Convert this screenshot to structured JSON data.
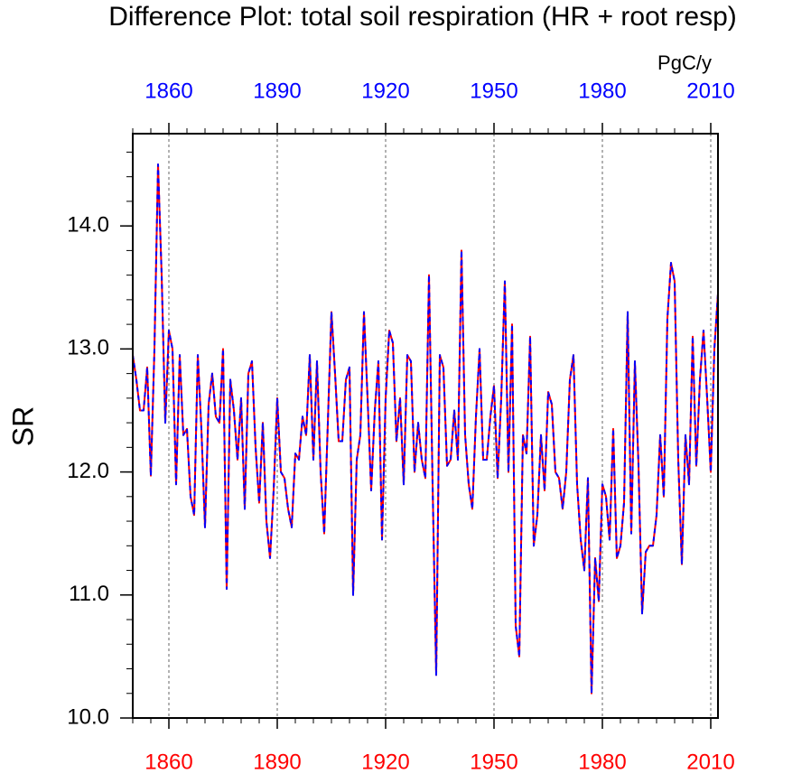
{
  "chart_data": {
    "type": "line",
    "title": "Difference Plot: total soil respiration (HR + root resp)",
    "units": "PgC/y",
    "y_label": "SR",
    "x": [
      1850,
      1851,
      1852,
      1853,
      1854,
      1855,
      1856,
      1857,
      1858,
      1859,
      1860,
      1861,
      1862,
      1863,
      1864,
      1865,
      1866,
      1867,
      1868,
      1869,
      1870,
      1871,
      1872,
      1873,
      1874,
      1875,
      1876,
      1877,
      1878,
      1879,
      1880,
      1881,
      1882,
      1883,
      1884,
      1885,
      1886,
      1887,
      1888,
      1889,
      1890,
      1891,
      1892,
      1893,
      1894,
      1895,
      1896,
      1897,
      1898,
      1899,
      1900,
      1901,
      1902,
      1903,
      1904,
      1905,
      1906,
      1907,
      1908,
      1909,
      1910,
      1911,
      1912,
      1913,
      1914,
      1915,
      1916,
      1917,
      1918,
      1919,
      1920,
      1921,
      1922,
      1923,
      1924,
      1925,
      1926,
      1927,
      1928,
      1929,
      1930,
      1931,
      1932,
      1933,
      1934,
      1935,
      1936,
      1937,
      1938,
      1939,
      1940,
      1941,
      1942,
      1943,
      1944,
      1945,
      1946,
      1947,
      1948,
      1949,
      1950,
      1951,
      1952,
      1953,
      1954,
      1955,
      1956,
      1957,
      1958,
      1959,
      1960,
      1961,
      1962,
      1963,
      1964,
      1965,
      1966,
      1967,
      1968,
      1969,
      1970,
      1971,
      1972,
      1973,
      1974,
      1975,
      1976,
      1977,
      1978,
      1979,
      1980,
      1981,
      1982,
      1983,
      1984,
      1985,
      1986,
      1987,
      1988,
      1989,
      1990,
      1991,
      1992,
      1993,
      1994,
      1995,
      1996,
      1997,
      1998,
      1999,
      2000,
      2001,
      2002,
      2003,
      2004,
      2005,
      2006,
      2007,
      2008,
      2009,
      2010,
      2011,
      2012
    ],
    "series": [
      {
        "color": "#ff0000",
        "dash": false,
        "values": [
          12.95,
          12.75,
          12.5,
          12.5,
          12.85,
          11.97,
          13.0,
          14.5,
          13.6,
          12.4,
          13.15,
          13.0,
          11.9,
          12.95,
          12.3,
          12.35,
          11.8,
          11.65,
          12.95,
          12.35,
          11.55,
          12.55,
          12.8,
          12.45,
          12.4,
          13.0,
          11.05,
          12.75,
          12.5,
          12.1,
          12.6,
          11.7,
          12.8,
          12.9,
          12.2,
          11.75,
          12.4,
          11.6,
          11.3,
          11.85,
          12.6,
          12.0,
          11.95,
          11.7,
          11.55,
          12.15,
          12.1,
          12.45,
          12.3,
          12.95,
          12.1,
          12.9,
          12.0,
          11.5,
          12.4,
          13.3,
          12.8,
          12.25,
          12.25,
          12.75,
          12.85,
          11.0,
          12.1,
          12.3,
          13.3,
          12.6,
          11.85,
          12.5,
          12.9,
          11.45,
          12.6,
          13.15,
          13.05,
          12.25,
          12.6,
          11.9,
          12.95,
          12.9,
          12.0,
          12.4,
          12.1,
          11.95,
          13.6,
          11.9,
          10.35,
          12.95,
          12.85,
          12.05,
          12.1,
          12.5,
          12.1,
          13.8,
          12.3,
          11.9,
          11.7,
          12.45,
          13.0,
          12.1,
          12.1,
          12.45,
          12.7,
          11.95,
          12.6,
          13.55,
          12.0,
          13.2,
          10.75,
          10.5,
          12.3,
          12.15,
          13.1,
          11.4,
          11.65,
          12.3,
          11.85,
          12.65,
          12.55,
          12.0,
          11.95,
          11.7,
          12.0,
          12.75,
          12.95,
          11.9,
          11.45,
          11.2,
          11.95,
          10.2,
          11.3,
          10.95,
          11.9,
          11.8,
          11.45,
          12.35,
          11.3,
          11.4,
          11.75,
          13.3,
          11.5,
          12.9,
          12.05,
          10.85,
          11.35,
          11.4,
          11.4,
          11.65,
          12.3,
          11.8,
          13.25,
          13.7,
          13.55,
          12.1,
          11.25,
          12.3,
          11.9,
          13.1,
          12.05,
          12.75,
          13.15,
          12.6,
          12.0,
          13.0,
          13.45
        ]
      },
      {
        "color": "#0000ff",
        "dash": true,
        "values": [
          12.95,
          12.75,
          12.5,
          12.5,
          12.85,
          11.97,
          13.0,
          14.5,
          13.6,
          12.4,
          13.15,
          13.0,
          11.9,
          12.95,
          12.3,
          12.35,
          11.8,
          11.65,
          12.95,
          12.35,
          11.55,
          12.55,
          12.8,
          12.45,
          12.4,
          13.0,
          11.05,
          12.75,
          12.5,
          12.1,
          12.6,
          11.7,
          12.8,
          12.9,
          12.2,
          11.75,
          12.4,
          11.6,
          11.3,
          11.85,
          12.6,
          12.0,
          11.95,
          11.7,
          11.55,
          12.15,
          12.1,
          12.45,
          12.3,
          12.95,
          12.1,
          12.9,
          12.0,
          11.5,
          12.4,
          13.3,
          12.8,
          12.25,
          12.25,
          12.75,
          12.85,
          11.0,
          12.1,
          12.3,
          13.3,
          12.6,
          11.85,
          12.5,
          12.9,
          11.45,
          12.6,
          13.15,
          13.05,
          12.25,
          12.6,
          11.9,
          12.95,
          12.9,
          12.0,
          12.4,
          12.1,
          11.95,
          13.6,
          11.9,
          10.35,
          12.95,
          12.85,
          12.05,
          12.1,
          12.5,
          12.1,
          13.8,
          12.3,
          11.9,
          11.7,
          12.45,
          13.0,
          12.1,
          12.1,
          12.45,
          12.7,
          11.95,
          12.6,
          13.55,
          12.0,
          13.2,
          10.75,
          10.5,
          12.3,
          12.15,
          13.1,
          11.4,
          11.65,
          12.3,
          11.85,
          12.65,
          12.55,
          12.0,
          11.95,
          11.7,
          12.0,
          12.75,
          12.95,
          11.9,
          11.45,
          11.2,
          11.95,
          10.2,
          11.3,
          10.95,
          11.9,
          11.8,
          11.45,
          12.35,
          11.3,
          11.4,
          11.75,
          13.3,
          11.5,
          12.9,
          12.05,
          10.85,
          11.35,
          11.4,
          11.4,
          11.65,
          12.3,
          11.8,
          13.25,
          13.7,
          13.55,
          12.1,
          11.25,
          12.3,
          11.9,
          13.1,
          12.05,
          12.75,
          13.15,
          12.6,
          12.0,
          13.0,
          13.45
        ]
      }
    ],
    "xlim": [
      1850,
      2012
    ],
    "xticks": [
      1860,
      1890,
      1920,
      1950,
      1980,
      2010
    ],
    "ylim": [
      10,
      14.75
    ],
    "yticks": [
      {
        "value": 10,
        "label": "10.0"
      },
      {
        "value": 11,
        "label": "11.0"
      },
      {
        "value": 12,
        "label": "12.0"
      },
      {
        "value": 13,
        "label": "13.0"
      },
      {
        "value": 14,
        "label": "14.0"
      }
    ],
    "grid": true,
    "top_tick_color": "#0000ff",
    "bottom_tick_color": "#ff0000"
  }
}
